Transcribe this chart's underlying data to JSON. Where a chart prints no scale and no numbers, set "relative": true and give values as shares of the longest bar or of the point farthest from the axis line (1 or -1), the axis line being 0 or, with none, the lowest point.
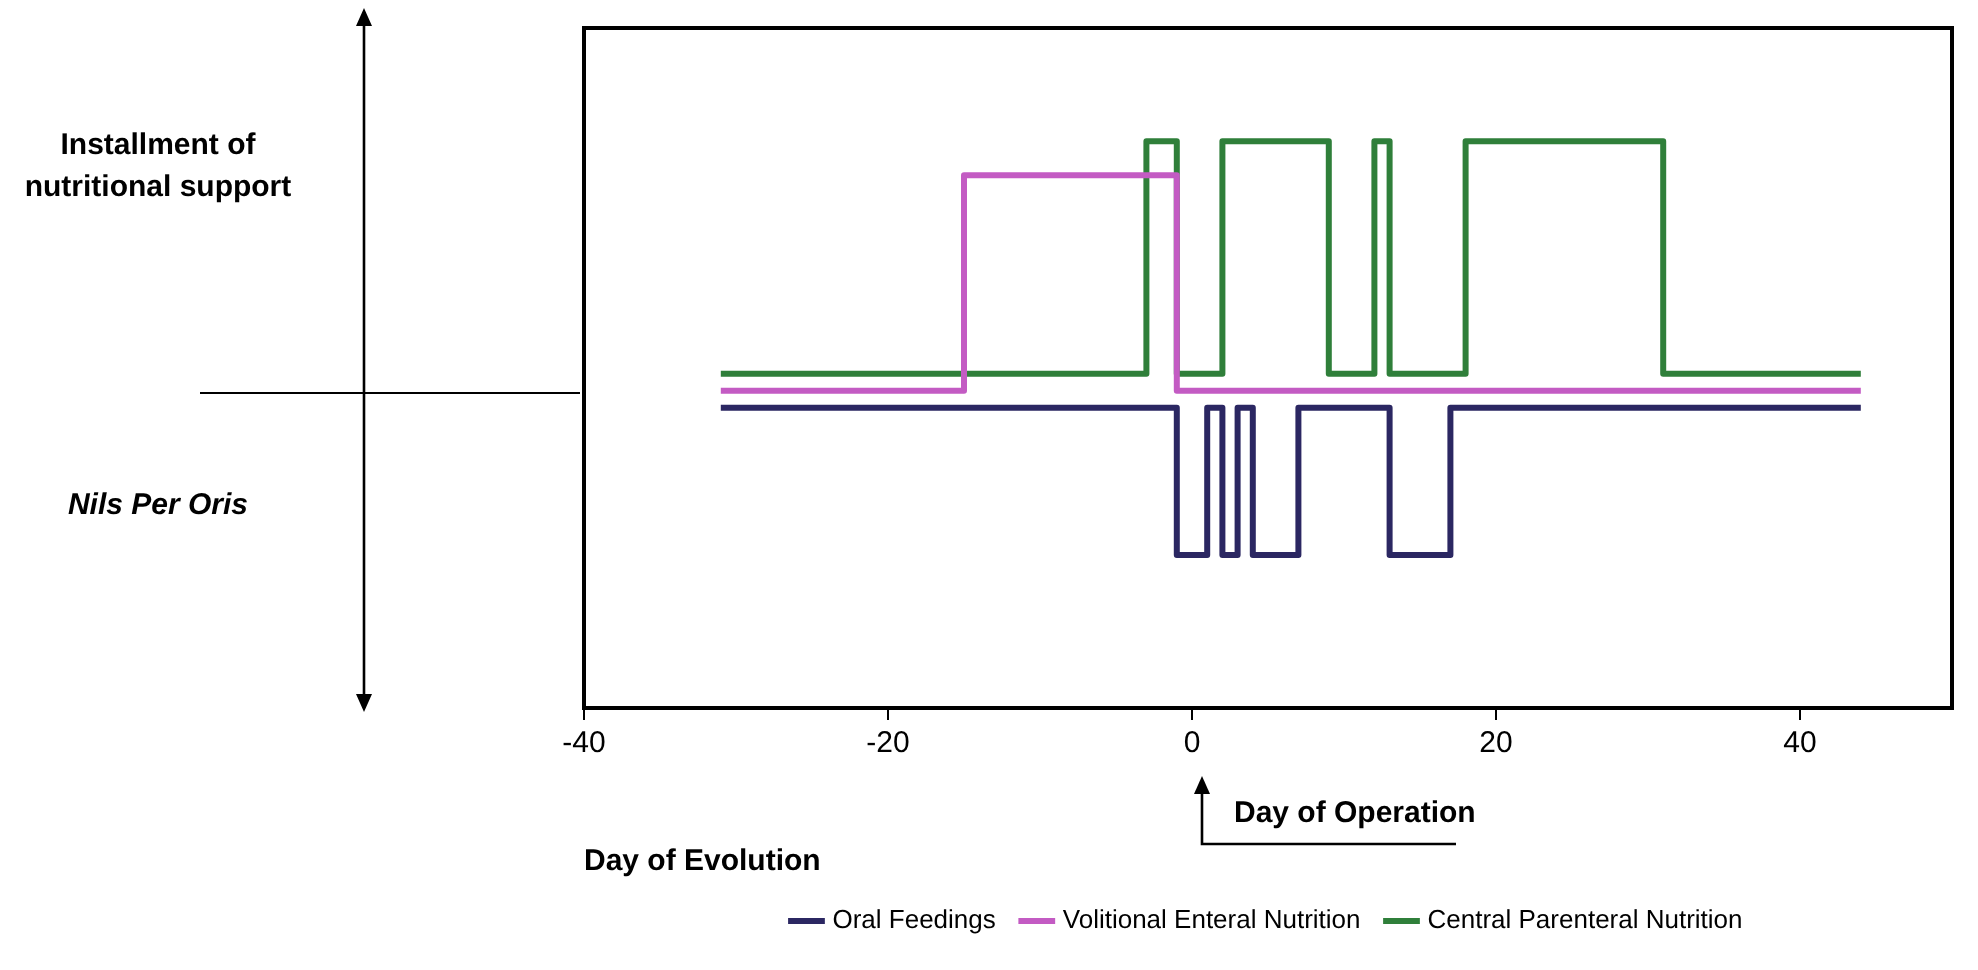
{
  "chart_data": {
    "type": "step",
    "relative": true,
    "xlabel": "Day of Evolution",
    "xlim": [
      -40,
      50
    ],
    "xticks": [
      -40,
      -20,
      0,
      20,
      40
    ],
    "legend": "bottom",
    "grid": false,
    "annotations": [
      "Installment of nutritional support",
      "Nils Per Oris",
      "Day of Operation"
    ],
    "series": [
      {
        "name": "Oral Feedings",
        "color": "#2b2762",
        "x": [
          -31,
          -1,
          1,
          2,
          3,
          4,
          7,
          13,
          17,
          44
        ],
        "values": [
          0.53,
          0.27,
          0.53,
          0.27,
          0.53,
          0.27,
          0.53,
          0.27,
          0.53,
          0.53
        ]
      },
      {
        "name": "Volitional Enteral Nutrition",
        "color": "#c35bc3",
        "x": [
          -31,
          -15,
          -1,
          44
        ],
        "values": [
          0.56,
          0.94,
          0.56,
          0.56
        ]
      },
      {
        "name": "Central Parenteral Nutrition",
        "color": "#2f7f3a",
        "x": [
          -31,
          -3,
          -1,
          2,
          9,
          12,
          13,
          18,
          31,
          44
        ],
        "values": [
          0.59,
          1,
          0.59,
          1,
          0.59,
          1,
          0.59,
          1,
          0.59,
          0.59
        ]
      }
    ]
  }
}
